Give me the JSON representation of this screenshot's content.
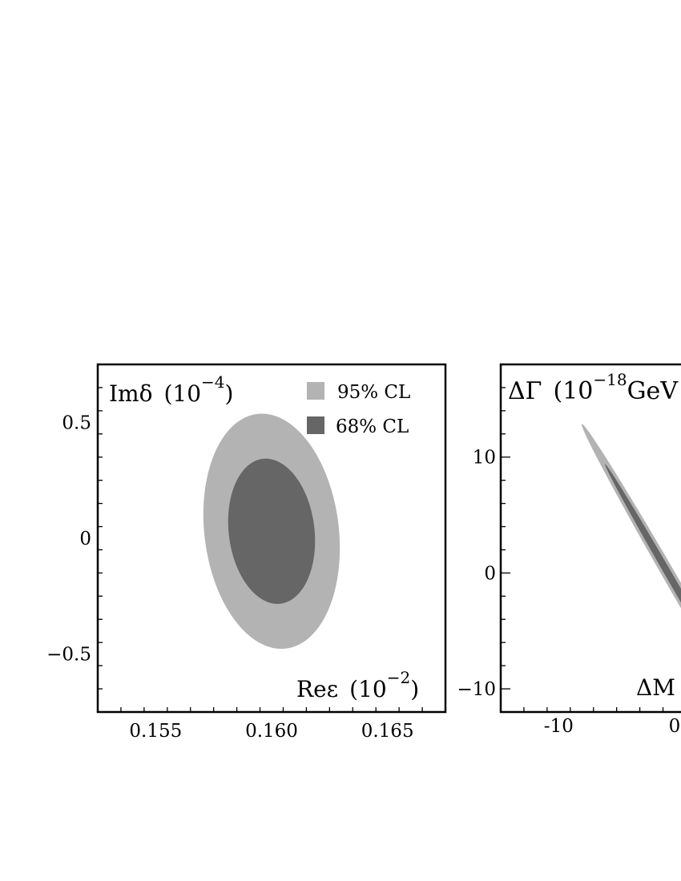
{
  "colors": {
    "cl95": "#b3b3b3",
    "cl68": "#666666",
    "frame": "#000000",
    "background": "#ffffff"
  },
  "chart_data": [
    {
      "type": "contour",
      "x_label_main": "Reε",
      "x_label_unit": "(10",
      "x_label_exp": "−2",
      "x_label_close": ")",
      "y_label_main": "Imδ",
      "y_label_unit": "(10",
      "y_label_exp": "−4",
      "y_label_close": ")",
      "xlim": [
        0.1525,
        0.1675
      ],
      "ylim": [
        -0.75,
        0.75
      ],
      "x_ticks": [
        0.155,
        0.16,
        0.165
      ],
      "x_tick_labels": [
        "0.155",
        "0.160",
        "0.165"
      ],
      "y_ticks": [
        -0.5,
        0,
        0.5
      ],
      "y_tick_labels": [
        "−0.5",
        "0",
        "0.5"
      ],
      "legend_position": "top-right",
      "legend": [
        {
          "label": "95% CL",
          "color": "#b3b3b3"
        },
        {
          "label": "68% CL",
          "color": "#666666"
        }
      ],
      "regions": [
        {
          "name": "95% CL",
          "center": [
            0.16,
            0.03
          ],
          "rx_x": 0.0029,
          "ry_y": 0.51,
          "angle_deg": -7
        },
        {
          "name": "68% CL",
          "center": [
            0.16,
            0.03
          ],
          "rx_x": 0.00185,
          "ry_y": 0.315,
          "angle_deg": -7
        }
      ]
    },
    {
      "type": "contour",
      "x_label_main": "ΔM",
      "y_label_main": "ΔΓ",
      "y_label_unit": "(10",
      "y_label_exp": "−18",
      "y_label_close": "GeV",
      "xlim": [
        -15,
        15
      ],
      "ylim": [
        -12,
        18
      ],
      "x_ticks": [
        -10,
        0
      ],
      "x_tick_labels": [
        "-10",
        "0"
      ],
      "y_ticks": [
        -10,
        0,
        10
      ],
      "y_tick_labels": [
        "−10",
        "0",
        "10"
      ],
      "regions": [
        {
          "name": "95% CL",
          "center": [
            0,
            -1
          ],
          "semi_major": 16,
          "semi_minor": 0.55,
          "angle_deg": -60
        },
        {
          "name": "68% CL",
          "center": [
            0,
            -1
          ],
          "semi_major": 12,
          "semi_minor": 0.3,
          "angle_deg": -60
        }
      ]
    }
  ]
}
